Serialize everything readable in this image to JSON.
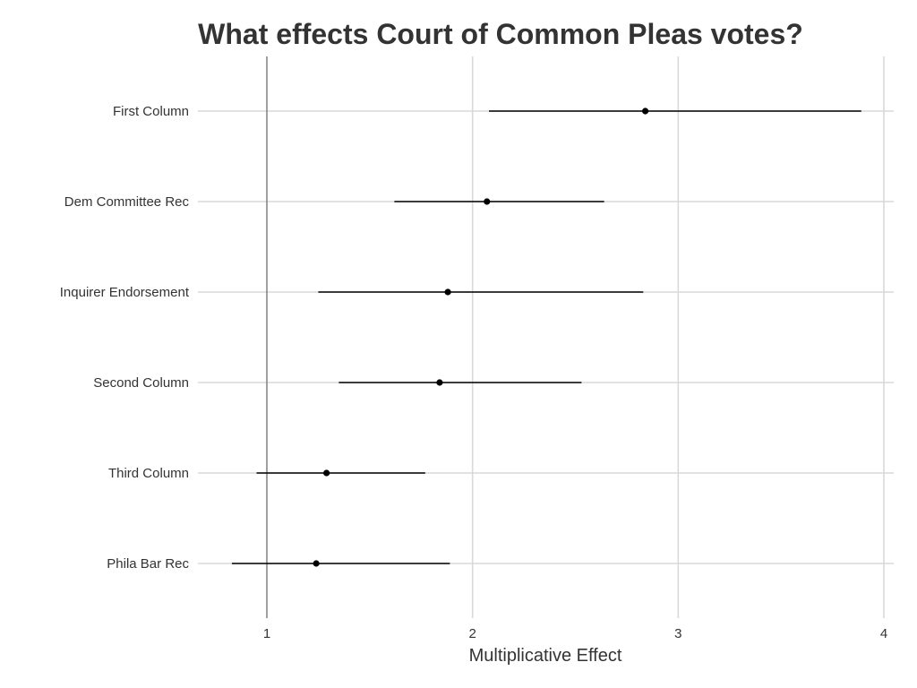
{
  "chart_data": {
    "type": "scatter",
    "title": "What effects Court of Common Pleas votes?",
    "xlabel": "Multiplicative Effect",
    "ylabel": "",
    "xlim": [
      0.67,
      4.05
    ],
    "xticks": [
      1,
      2,
      3,
      4
    ],
    "reference_line_x": 1,
    "grid": true,
    "legend": "none",
    "categories": [
      "First Column",
      "Dem Committee Rec",
      "Inquirer Endorsement",
      "Second Column",
      "Third Column",
      "Phila Bar Rec"
    ],
    "series": [
      {
        "estimate": [
          2.84,
          2.07,
          1.88,
          1.84,
          1.29,
          1.24
        ],
        "lower": [
          2.08,
          1.62,
          1.25,
          1.35,
          0.95,
          0.83
        ],
        "upper": [
          3.89,
          2.64,
          2.83,
          2.53,
          1.77,
          1.89
        ]
      }
    ],
    "colors": {
      "point": "#000000",
      "grid": "#d9d9d9",
      "reference_line": "#777777",
      "text": "#333333"
    }
  }
}
